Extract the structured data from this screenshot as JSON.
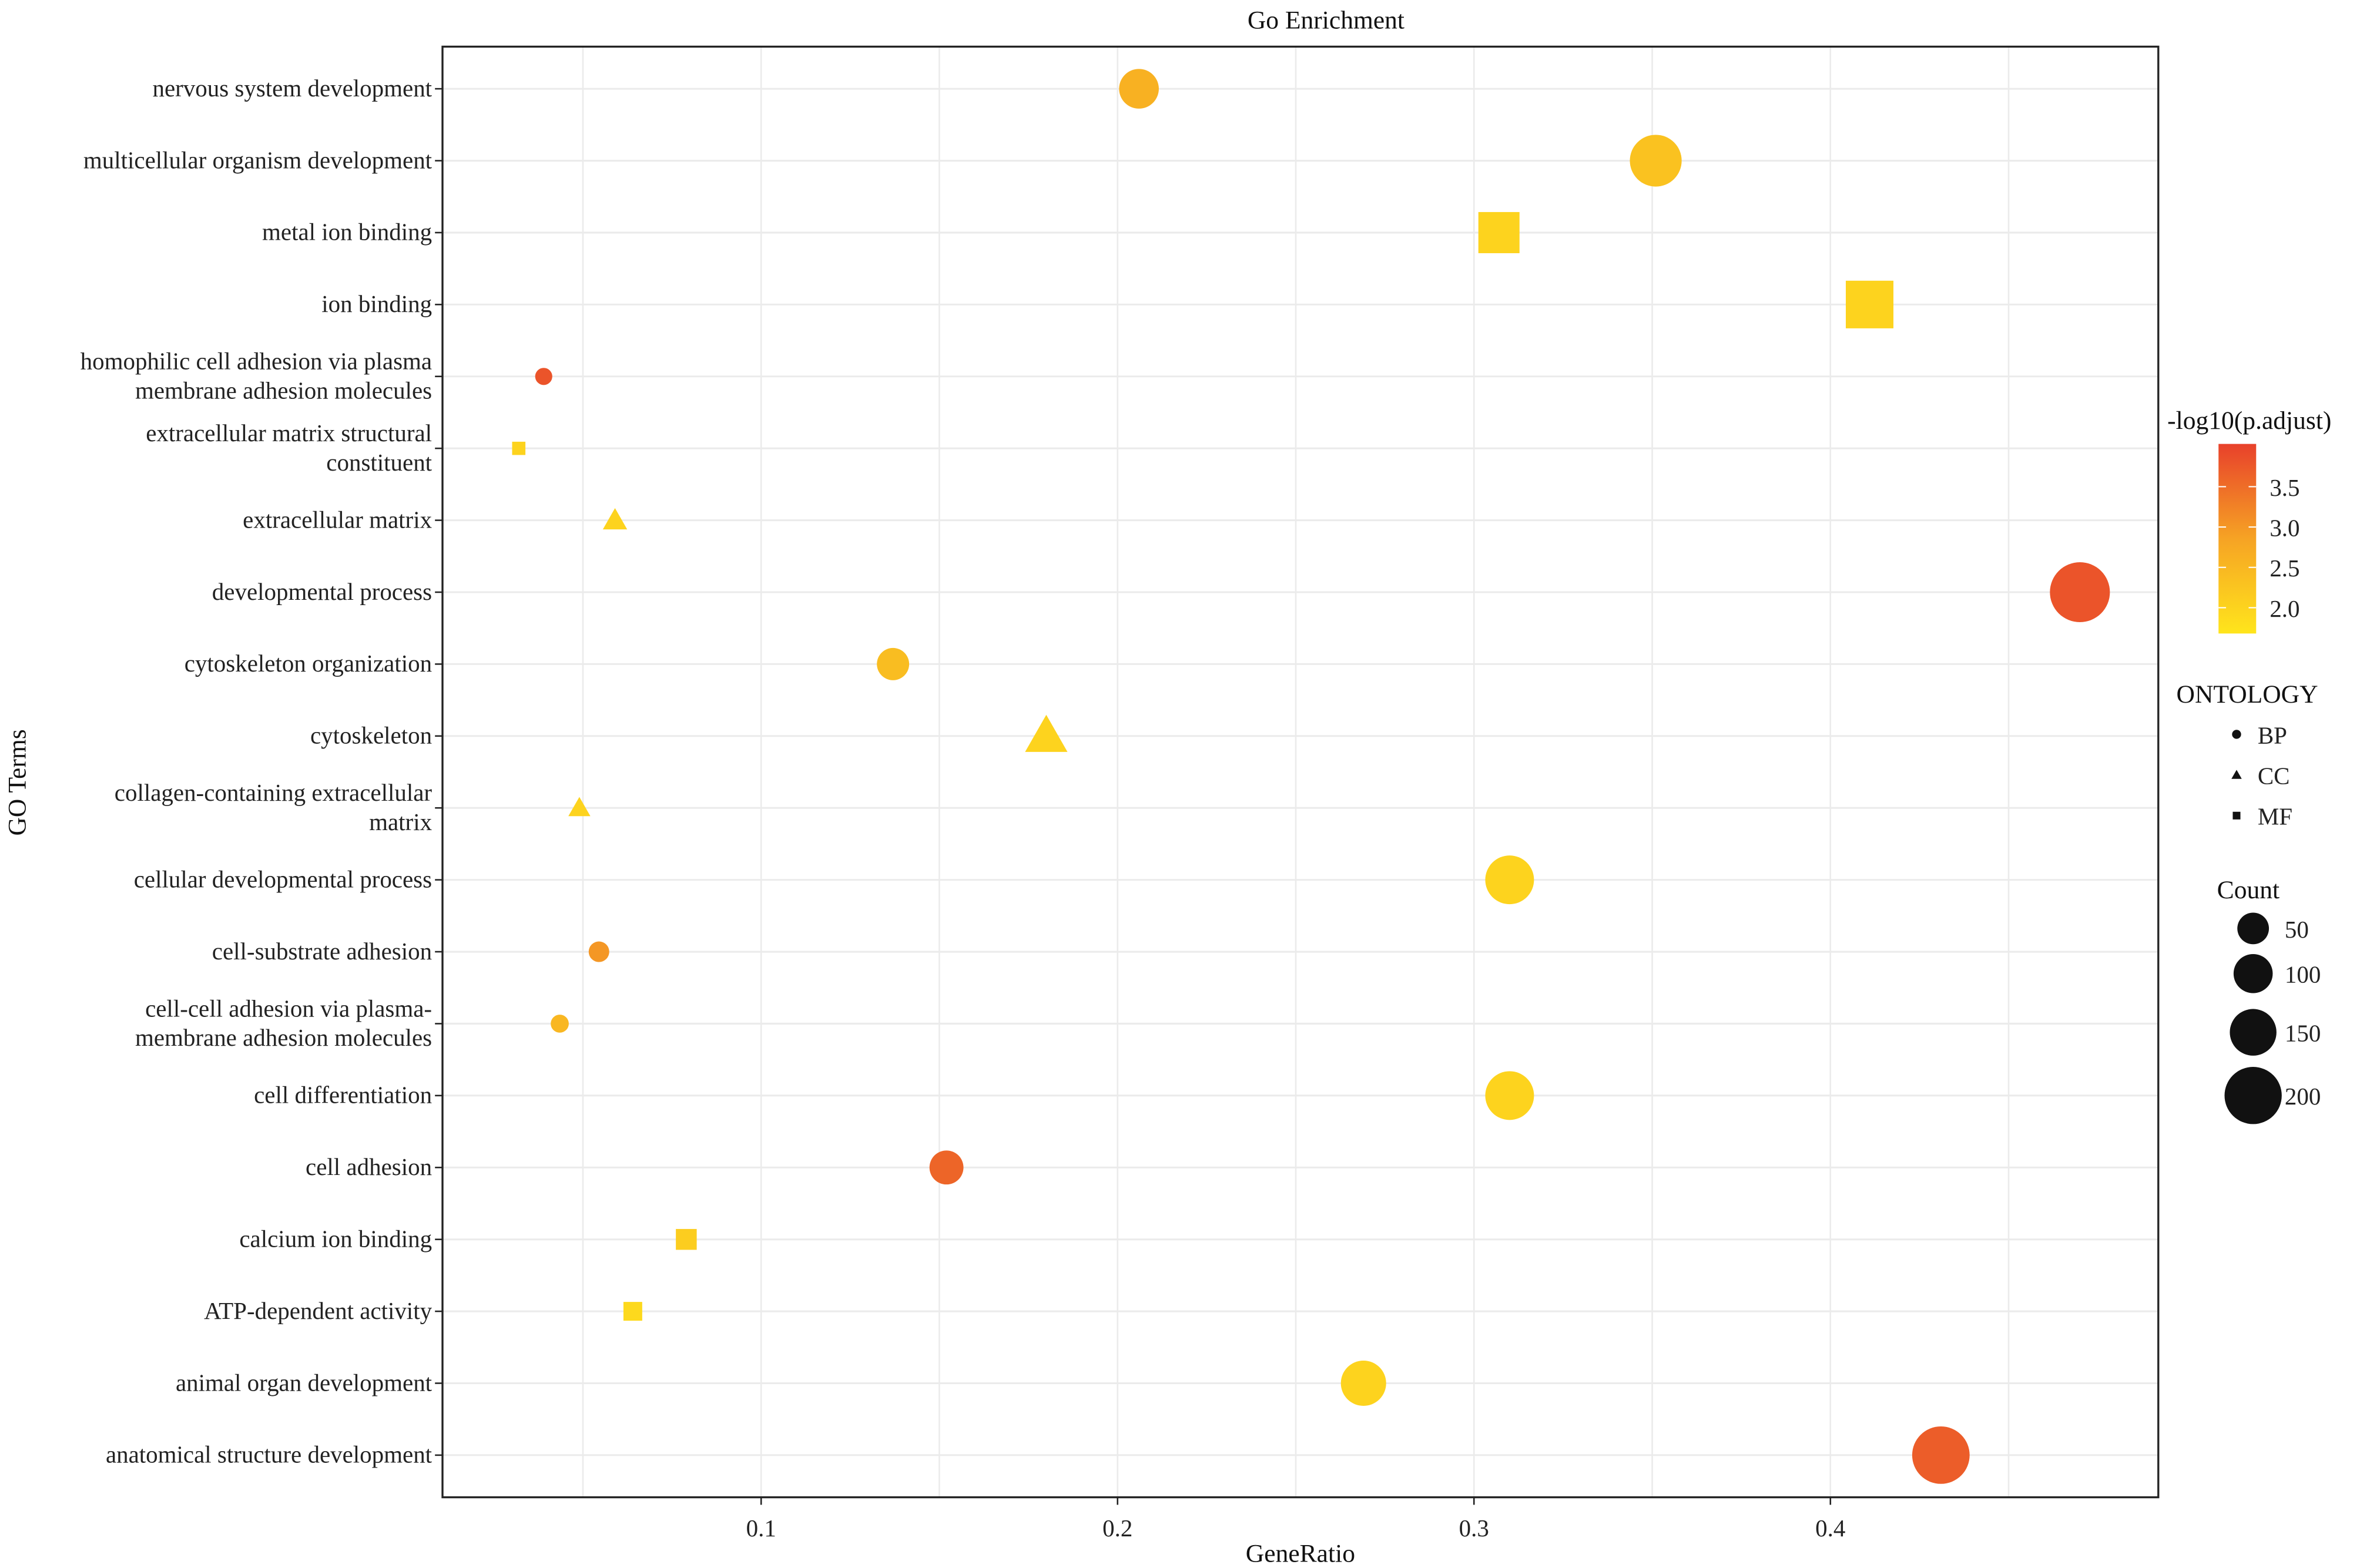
{
  "chart_data": {
    "type": "scatter",
    "title": "Go Enrichment",
    "xlabel": "GeneRatio",
    "ylabel": "GO Terms",
    "xlim": [
      0.0106,
      0.492
    ],
    "xticks": [
      "0.1",
      "0.2",
      "0.3",
      "0.4"
    ],
    "xtick_values": [
      0.1,
      0.2,
      0.3,
      0.4
    ],
    "grid": true,
    "points": [
      {
        "term": "nervous system development",
        "lines": [
          "nervous system development"
        ],
        "x": 0.206,
        "ontology": "BP",
        "p": 2.6,
        "count": 97
      },
      {
        "term": "multicellular organism development",
        "lines": [
          "multicellular organism development"
        ],
        "x": 0.351,
        "ontology": "BP",
        "p": 2.3,
        "count": 165
      },
      {
        "term": "metal ion binding",
        "lines": [
          "metal ion binding"
        ],
        "x": 0.307,
        "ontology": "MF",
        "p": 2.0,
        "count": 144
      },
      {
        "term": "ion binding",
        "lines": [
          "ion binding"
        ],
        "x": 0.411,
        "ontology": "MF",
        "p": 2.0,
        "count": 193
      },
      {
        "term": "homophilic cell adhesion via plasma membrane adhesion molecules",
        "lines": [
          "homophilic cell adhesion via plasma",
          "membrane adhesion molecules"
        ],
        "x": 0.039,
        "ontology": "BP",
        "p": 3.8,
        "count": 18
      },
      {
        "term": "extracellular matrix structural constituent",
        "lines": [
          "extracellular matrix structural",
          "constituent"
        ],
        "x": 0.032,
        "ontology": "MF",
        "p": 2.0,
        "count": 15
      },
      {
        "term": "extracellular matrix",
        "lines": [
          "extracellular matrix"
        ],
        "x": 0.059,
        "ontology": "CC",
        "p": 2.0,
        "count": 28
      },
      {
        "term": "developmental process",
        "lines": [
          "developmental process"
        ],
        "x": 0.47,
        "ontology": "BP",
        "p": 3.8,
        "count": 221
      },
      {
        "term": "cytoskeleton organization",
        "lines": [
          "cytoskeleton organization"
        ],
        "x": 0.137,
        "ontology": "BP",
        "p": 2.4,
        "count": 64
      },
      {
        "term": "cytoskeleton",
        "lines": [
          "cytoskeleton"
        ],
        "x": 0.18,
        "ontology": "CC",
        "p": 2.0,
        "count": 85
      },
      {
        "term": "collagen-containing extracellular matrix",
        "lines": [
          "collagen-containing extracellular",
          "matrix"
        ],
        "x": 0.049,
        "ontology": "CC",
        "p": 2.0,
        "count": 23
      },
      {
        "term": "cellular developmental process",
        "lines": [
          "cellular developmental process"
        ],
        "x": 0.31,
        "ontology": "BP",
        "p": 2.0,
        "count": 146
      },
      {
        "term": "cell-substrate adhesion",
        "lines": [
          "cell-substrate adhesion"
        ],
        "x": 0.0545,
        "ontology": "BP",
        "p": 3.0,
        "count": 26
      },
      {
        "term": "cell-cell adhesion via plasma-membrane adhesion molecules",
        "lines": [
          "cell-cell adhesion via plasma-",
          "membrane adhesion molecules"
        ],
        "x": 0.0435,
        "ontology": "BP",
        "p": 2.5,
        "count": 20
      },
      {
        "term": "cell differentiation",
        "lines": [
          "cell differentiation"
        ],
        "x": 0.31,
        "ontology": "BP",
        "p": 2.0,
        "count": 146
      },
      {
        "term": "cell adhesion",
        "lines": [
          "cell adhesion"
        ],
        "x": 0.152,
        "ontology": "BP",
        "p": 3.6,
        "count": 71
      },
      {
        "term": "calcium ion binding",
        "lines": [
          "calcium ion binding"
        ],
        "x": 0.079,
        "ontology": "MF",
        "p": 2.1,
        "count": 37
      },
      {
        "term": "ATP-dependent activity",
        "lines": [
          "ATP-dependent activity"
        ],
        "x": 0.064,
        "ontology": "MF",
        "p": 1.9,
        "count": 30
      },
      {
        "term": "animal organ development",
        "lines": [
          "animal organ development"
        ],
        "x": 0.269,
        "ontology": "BP",
        "p": 2.0,
        "count": 126
      },
      {
        "term": "anatomical structure development",
        "lines": [
          "anatomical structure development"
        ],
        "x": 0.431,
        "ontology": "BP",
        "p": 3.7,
        "count": 203
      }
    ],
    "color_legend": {
      "title": "-log10(p.adjust)",
      "ticks": [
        "3.5",
        "3.0",
        "2.5",
        "2.0"
      ],
      "tick_values": [
        3.5,
        3.0,
        2.5,
        2.0
      ],
      "range": [
        1.68,
        4.03
      ],
      "colors": [
        "#FFE51C",
        "#F6A324",
        "#E8412B"
      ]
    },
    "shape_legend": {
      "title": "ONTOLOGY",
      "items": [
        "BP",
        "CC",
        "MF"
      ]
    },
    "size_legend": {
      "title": "Count",
      "items": [
        "50",
        "100",
        "150",
        "200"
      ],
      "values": [
        50,
        100,
        150,
        200
      ]
    },
    "legend_position": "right"
  }
}
